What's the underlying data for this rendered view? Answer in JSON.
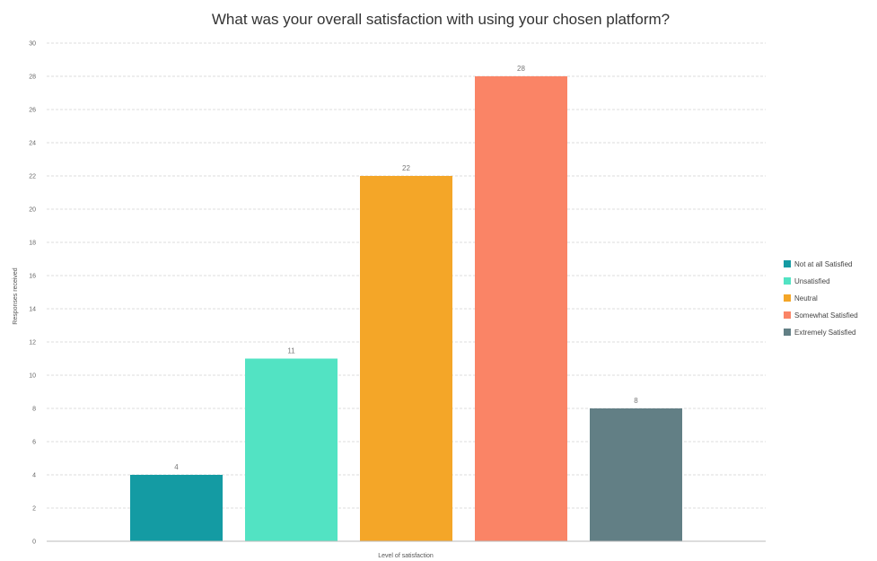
{
  "chart_data": {
    "type": "bar",
    "title": "What was your overall satisfaction with using your chosen platform?",
    "xlabel": "Level of satisfaction",
    "ylabel": "Responses received",
    "categories": [
      "Not at all Satisfied",
      "Unsatisfied",
      "Neutral",
      "Somewhat Satisfied",
      "Extremely Satisfied"
    ],
    "values": [
      4,
      11,
      22,
      28,
      8
    ],
    "colors": [
      "#149ba3",
      "#52e3c3",
      "#f4a628",
      "#fa8466",
      "#627f85"
    ],
    "ylim": [
      0,
      30
    ],
    "yticks": [
      0,
      2,
      4,
      6,
      8,
      10,
      12,
      14,
      16,
      18,
      20,
      22,
      24,
      26,
      28,
      30
    ],
    "data_labels": true,
    "grid": true,
    "legend": "right"
  }
}
